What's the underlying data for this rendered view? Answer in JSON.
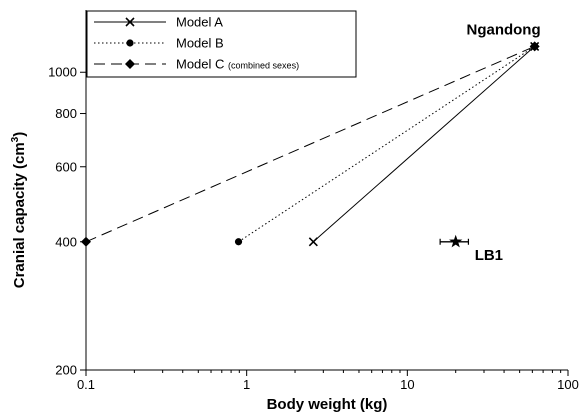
{
  "chart_data": {
    "type": "line",
    "xlabel": "Body weight (kg)",
    "ylabel_main": "Cranial capacity (cm",
    "ylabel_sup": "3",
    "ylabel_close": ")",
    "x_scale": "log",
    "y_scale": "log",
    "xlim": [
      0.1,
      100
    ],
    "ylim": [
      200,
      1400
    ],
    "x_ticks": [
      0.1,
      1,
      10,
      100
    ],
    "x_tick_labels": [
      "0.1",
      "1",
      "10",
      "100"
    ],
    "y_ticks": [
      200,
      400,
      600,
      800,
      1000
    ],
    "y_tick_labels": [
      "200",
      "400",
      "600",
      "800",
      "1000"
    ],
    "grid": false,
    "legend_position": "top-left",
    "series": [
      {
        "name": "Model A",
        "note": "",
        "marker": "x",
        "dash": "solid",
        "points": [
          [
            2.6,
            400
          ],
          [
            62,
            1150
          ]
        ]
      },
      {
        "name": "Model B",
        "note": "",
        "marker": "circle",
        "dash": "dotted",
        "points": [
          [
            0.89,
            400
          ],
          [
            62,
            1150
          ]
        ]
      },
      {
        "name": "Model C",
        "note": "(combined sexes)",
        "marker": "diamond",
        "dash": "dashed",
        "points": [
          [
            0.1,
            400
          ],
          [
            62,
            1150
          ]
        ]
      }
    ],
    "annotations": [
      {
        "label": "Ngandong",
        "x": 62,
        "y": 1150
      },
      {
        "label": "LB1",
        "x": 20,
        "y": 400,
        "marker": "star",
        "x_error": [
          16,
          24
        ]
      }
    ]
  }
}
